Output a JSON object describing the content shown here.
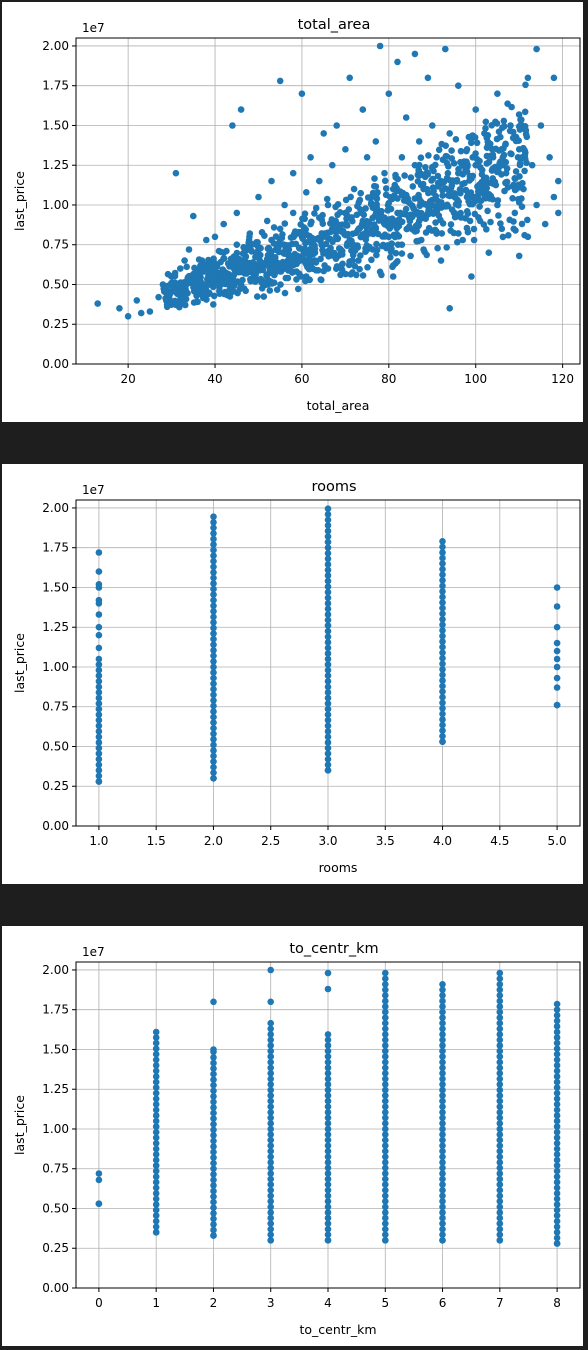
{
  "chart_data": [
    {
      "type": "scatter",
      "title": "total_area",
      "xlabel": "total_area",
      "ylabel": "last_price",
      "y_scale_label": "1e7",
      "xlim": [
        8,
        124
      ],
      "ylim": [
        0,
        2.05
      ],
      "x_ticks": [
        20,
        40,
        60,
        80,
        100,
        120
      ],
      "x_tick_labels": [
        "20",
        "40",
        "60",
        "80",
        "100",
        "120"
      ],
      "y_ticks": [
        0,
        0.25,
        0.5,
        0.75,
        1.0,
        1.25,
        1.5,
        1.75,
        2.0
      ],
      "y_tick_labels": [
        "0.00",
        "0.25",
        "0.50",
        "0.75",
        "1.00",
        "1.25",
        "1.50",
        "1.75",
        "2.00"
      ],
      "grid": true,
      "marker_color": "#1f77b4",
      "points": [
        [
          13,
          0.38
        ],
        [
          18,
          0.35
        ],
        [
          20,
          0.3
        ],
        [
          22,
          0.4
        ],
        [
          23,
          0.32
        ],
        [
          25,
          0.33
        ],
        [
          27,
          0.42
        ],
        [
          28,
          0.5
        ],
        [
          29,
          0.36
        ],
        [
          30,
          0.55
        ],
        [
          31,
          1.2
        ],
        [
          31,
          0.45
        ],
        [
          32,
          0.6
        ],
        [
          33,
          0.65
        ],
        [
          33,
          0.42
        ],
        [
          34,
          0.72
        ],
        [
          35,
          0.93
        ],
        [
          35,
          0.5
        ],
        [
          36,
          0.58
        ],
        [
          37,
          0.65
        ],
        [
          38,
          0.78
        ],
        [
          38,
          0.45
        ],
        [
          39,
          0.55
        ],
        [
          40,
          0.8
        ],
        [
          40,
          0.62
        ],
        [
          41,
          0.48
        ],
        [
          42,
          0.7
        ],
        [
          42,
          0.88
        ],
        [
          43,
          0.55
        ],
        [
          44,
          1.5
        ],
        [
          44,
          0.62
        ],
        [
          45,
          0.95
        ],
        [
          45,
          0.75
        ],
        [
          46,
          1.6
        ],
        [
          46,
          0.5
        ],
        [
          47,
          0.68
        ],
        [
          48,
          0.82
        ],
        [
          48,
          0.58
        ],
        [
          49,
          0.6
        ],
        [
          50,
          1.05
        ],
        [
          50,
          0.72
        ],
        [
          51,
          0.52
        ],
        [
          52,
          0.9
        ],
        [
          52,
          0.66
        ],
        [
          53,
          1.15
        ],
        [
          53,
          0.78
        ],
        [
          54,
          0.62
        ],
        [
          55,
          1.78
        ],
        [
          55,
          0.85
        ],
        [
          56,
          1.0
        ],
        [
          56,
          0.6
        ],
        [
          57,
          0.72
        ],
        [
          58,
          1.2
        ],
        [
          58,
          0.95
        ],
        [
          59,
          0.68
        ],
        [
          60,
          1.7
        ],
        [
          60,
          0.8
        ],
        [
          61,
          1.08
        ],
        [
          61,
          0.55
        ],
        [
          62,
          1.3
        ],
        [
          62,
          0.88
        ],
        [
          63,
          0.7
        ],
        [
          64,
          1.15
        ],
        [
          64,
          0.92
        ],
        [
          65,
          1.45
        ],
        [
          65,
          0.75
        ],
        [
          66,
          1.0
        ],
        [
          66,
          0.6
        ],
        [
          67,
          1.25
        ],
        [
          68,
          0.85
        ],
        [
          68,
          1.5
        ],
        [
          69,
          0.7
        ],
        [
          70,
          1.35
        ],
        [
          70,
          0.95
        ],
        [
          71,
          1.8
        ],
        [
          71,
          0.78
        ],
        [
          72,
          1.1
        ],
        [
          73,
          0.65
        ],
        [
          74,
          1.6
        ],
        [
          74,
          0.9
        ],
        [
          75,
          1.3
        ],
        [
          75,
          0.72
        ],
        [
          76,
          1.05
        ],
        [
          77,
          0.85
        ],
        [
          77,
          1.4
        ],
        [
          78,
          0.58
        ],
        [
          78,
          2.0
        ],
        [
          79,
          1.2
        ],
        [
          79,
          0.92
        ],
        [
          80,
          1.7
        ],
        [
          80,
          0.8
        ],
        [
          81,
          1.1
        ],
        [
          81,
          0.55
        ],
        [
          82,
          1.9
        ],
        [
          82,
          0.95
        ],
        [
          83,
          1.3
        ],
        [
          83,
          0.75
        ],
        [
          84,
          1.05
        ],
        [
          84,
          1.55
        ],
        [
          85,
          0.68
        ],
        [
          86,
          1.25
        ],
        [
          86,
          1.95
        ],
        [
          87,
          0.9
        ],
        [
          87,
          1.4
        ],
        [
          88,
          0.72
        ],
        [
          88,
          1.1
        ],
        [
          89,
          1.8
        ],
        [
          90,
          1.0
        ],
        [
          90,
          1.5
        ],
        [
          91,
          0.82
        ],
        [
          91,
          1.3
        ],
        [
          92,
          0.65
        ],
        [
          92,
          1.15
        ],
        [
          93,
          1.98
        ],
        [
          94,
          0.35
        ],
        [
          94,
          1.45
        ],
        [
          95,
          0.95
        ],
        [
          96,
          1.2
        ],
        [
          96,
          1.75
        ],
        [
          97,
          0.78
        ],
        [
          98,
          1.35
        ],
        [
          98,
          1.05
        ],
        [
          99,
          0.55
        ],
        [
          100,
          1.6
        ],
        [
          100,
          1.25
        ],
        [
          101,
          0.9
        ],
        [
          102,
          1.1
        ],
        [
          102,
          1.45
        ],
        [
          103,
          0.7
        ],
        [
          104,
          1.3
        ],
        [
          105,
          1.0
        ],
        [
          105,
          1.7
        ],
        [
          106,
          0.85
        ],
        [
          107,
          1.2
        ],
        [
          108,
          1.5
        ],
        [
          109,
          0.95
        ],
        [
          110,
          0.68
        ],
        [
          110,
          1.35
        ],
        [
          111,
          1.1
        ],
        [
          112,
          1.8
        ],
        [
          112,
          0.8
        ],
        [
          113,
          1.25
        ],
        [
          114,
          1.0
        ],
        [
          114,
          1.98
        ],
        [
          115,
          1.5
        ],
        [
          116,
          0.88
        ],
        [
          117,
          1.3
        ],
        [
          118,
          1.8
        ],
        [
          118,
          1.05
        ],
        [
          119,
          1.15
        ],
        [
          119,
          0.95
        ]
      ]
    },
    {
      "type": "scatter",
      "title": "rooms",
      "xlabel": "rooms",
      "ylabel": "last_price",
      "y_scale_label": "1e7",
      "xlim": [
        0.8,
        5.2
      ],
      "ylim": [
        0,
        2.05
      ],
      "x_ticks": [
        1.0,
        1.5,
        2.0,
        2.5,
        3.0,
        3.5,
        4.0,
        4.5,
        5.0
      ],
      "x_tick_labels": [
        "1.0",
        "1.5",
        "2.0",
        "2.5",
        "3.0",
        "3.5",
        "4.0",
        "4.5",
        "5.0"
      ],
      "y_ticks": [
        0,
        0.25,
        0.5,
        0.75,
        1.0,
        1.25,
        1.5,
        1.75,
        2.0
      ],
      "y_tick_labels": [
        "0.00",
        "0.25",
        "0.50",
        "0.75",
        "1.00",
        "1.25",
        "1.50",
        "1.75",
        "2.00"
      ],
      "grid": true,
      "marker_color": "#1f77b4",
      "series_ranges": [
        {
          "x": 1,
          "y_min": 0.28,
          "y_max": 1.72,
          "dense_max": 1.05
        },
        {
          "x": 2,
          "y_min": 0.3,
          "y_max": 1.98,
          "dense_max": 1.95
        },
        {
          "x": 3,
          "y_min": 0.35,
          "y_max": 2.0,
          "dense_max": 2.0
        },
        {
          "x": 4,
          "y_min": 0.53,
          "y_max": 1.8,
          "dense_max": 1.8
        },
        {
          "x": 5,
          "y_min": 0.76,
          "y_max": 1.5,
          "dense_max": 0
        }
      ],
      "points": [
        [
          1,
          1.72
        ],
        [
          1,
          1.6
        ],
        [
          1,
          1.52
        ],
        [
          1,
          1.5
        ],
        [
          1,
          1.42
        ],
        [
          1,
          1.4
        ],
        [
          1,
          1.33
        ],
        [
          1,
          1.25
        ],
        [
          1,
          1.2
        ],
        [
          1,
          1.12
        ],
        [
          5,
          1.5
        ],
        [
          5,
          1.38
        ],
        [
          5,
          1.25
        ],
        [
          5,
          1.15
        ],
        [
          5,
          1.1
        ],
        [
          5,
          1.05
        ],
        [
          5,
          1.0
        ],
        [
          5,
          0.93
        ],
        [
          5,
          0.87
        ],
        [
          5,
          0.76
        ]
      ]
    },
    {
      "type": "scatter",
      "title": "to_centr_km",
      "xlabel": "to_centr_km",
      "ylabel": "last_price",
      "y_scale_label": "1e7",
      "xlim": [
        -0.4,
        8.4
      ],
      "ylim": [
        0,
        2.05
      ],
      "x_ticks": [
        0,
        1,
        2,
        3,
        4,
        5,
        6,
        7,
        8
      ],
      "x_tick_labels": [
        "0",
        "1",
        "2",
        "3",
        "4",
        "5",
        "6",
        "7",
        "8"
      ],
      "y_ticks": [
        0,
        0.25,
        0.5,
        0.75,
        1.0,
        1.25,
        1.5,
        1.75,
        2.0
      ],
      "y_tick_labels": [
        "0.00",
        "0.25",
        "0.50",
        "0.75",
        "1.00",
        "1.25",
        "1.50",
        "1.75",
        "2.00"
      ],
      "grid": true,
      "marker_color": "#1f77b4",
      "series_ranges": [
        {
          "x": 0,
          "y_min": 0.53,
          "y_max": 0.72,
          "dense_max": 0
        },
        {
          "x": 1,
          "y_min": 0.35,
          "y_max": 1.63,
          "dense_max": 1.63
        },
        {
          "x": 2,
          "y_min": 0.33,
          "y_max": 1.8,
          "dense_max": 1.5
        },
        {
          "x": 3,
          "y_min": 0.3,
          "y_max": 2.0,
          "dense_max": 1.68
        },
        {
          "x": 4,
          "y_min": 0.3,
          "y_max": 1.98,
          "dense_max": 1.62
        },
        {
          "x": 5,
          "y_min": 0.3,
          "y_max": 1.99,
          "dense_max": 1.99
        },
        {
          "x": 6,
          "y_min": 0.3,
          "y_max": 1.94,
          "dense_max": 1.94
        },
        {
          "x": 7,
          "y_min": 0.3,
          "y_max": 1.98,
          "dense_max": 1.98
        },
        {
          "x": 8,
          "y_min": 0.28,
          "y_max": 1.8,
          "dense_max": 1.8
        }
      ],
      "points": [
        [
          0,
          0.72
        ],
        [
          0,
          0.68
        ],
        [
          0,
          0.53
        ],
        [
          2,
          1.8
        ],
        [
          2,
          1.5
        ],
        [
          3,
          2.0
        ],
        [
          3,
          1.8
        ],
        [
          4,
          1.98
        ],
        [
          4,
          1.88
        ]
      ]
    }
  ]
}
